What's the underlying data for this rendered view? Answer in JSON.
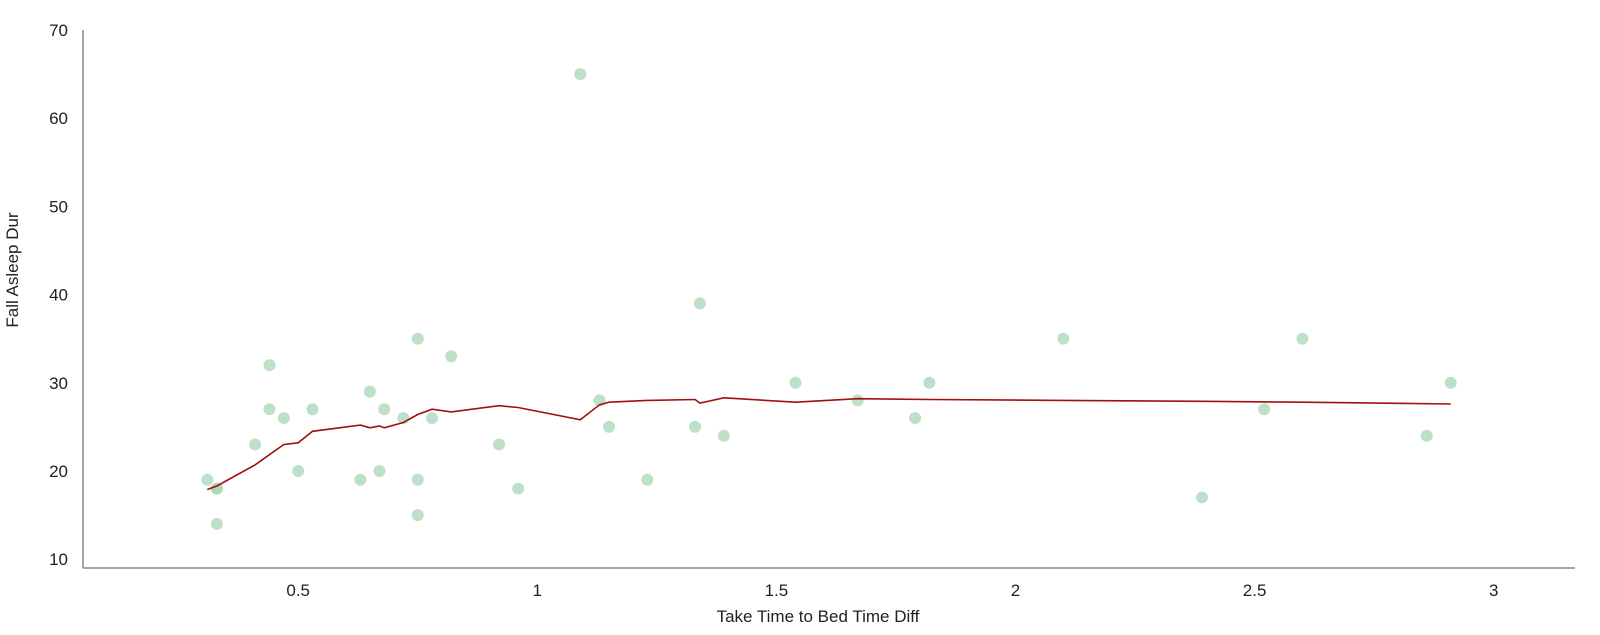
{
  "chart_data": {
    "type": "scatter",
    "xlabel": "Take Time to Bed Time Diff",
    "ylabel": "Fall Asleep Dur",
    "xlim": [
      0.05,
      3.17
    ],
    "ylim": [
      9,
      70
    ],
    "x_ticks": [
      0.5,
      1,
      1.5,
      2,
      2.5,
      3
    ],
    "x_tick_labels": [
      "0.5",
      "1",
      "1.5",
      "2",
      "2.5",
      "3"
    ],
    "y_ticks": [
      10,
      20,
      30,
      40,
      50,
      60,
      70
    ],
    "y_tick_labels": [
      "10",
      "20",
      "30",
      "40",
      "50",
      "60",
      "70"
    ],
    "grid": false,
    "colors": {
      "points": "#a8d5b5",
      "trend": "#a01010",
      "axis": "#888888"
    },
    "series": [
      {
        "kind": "scatter",
        "points": [
          {
            "x": 0.31,
            "y": 19
          },
          {
            "x": 0.33,
            "y": 18
          },
          {
            "x": 0.33,
            "y": 18
          },
          {
            "x": 0.33,
            "y": 14
          },
          {
            "x": 0.41,
            "y": 23
          },
          {
            "x": 0.44,
            "y": 32
          },
          {
            "x": 0.44,
            "y": 27
          },
          {
            "x": 0.47,
            "y": 26
          },
          {
            "x": 0.5,
            "y": 20
          },
          {
            "x": 0.53,
            "y": 27
          },
          {
            "x": 0.63,
            "y": 19
          },
          {
            "x": 0.65,
            "y": 29
          },
          {
            "x": 0.67,
            "y": 20
          },
          {
            "x": 0.68,
            "y": 27
          },
          {
            "x": 0.72,
            "y": 26
          },
          {
            "x": 0.75,
            "y": 35
          },
          {
            "x": 0.75,
            "y": 19
          },
          {
            "x": 0.75,
            "y": 15
          },
          {
            "x": 0.78,
            "y": 26
          },
          {
            "x": 0.82,
            "y": 33
          },
          {
            "x": 0.92,
            "y": 23
          },
          {
            "x": 0.96,
            "y": 18
          },
          {
            "x": 1.09,
            "y": 65
          },
          {
            "x": 1.13,
            "y": 28
          },
          {
            "x": 1.15,
            "y": 25
          },
          {
            "x": 1.23,
            "y": 19
          },
          {
            "x": 1.33,
            "y": 25
          },
          {
            "x": 1.34,
            "y": 39
          },
          {
            "x": 1.39,
            "y": 24
          },
          {
            "x": 1.54,
            "y": 30
          },
          {
            "x": 1.67,
            "y": 28
          },
          {
            "x": 1.79,
            "y": 26
          },
          {
            "x": 1.82,
            "y": 30
          },
          {
            "x": 2.1,
            "y": 35
          },
          {
            "x": 2.39,
            "y": 17
          },
          {
            "x": 2.52,
            "y": 27
          },
          {
            "x": 2.6,
            "y": 35
          },
          {
            "x": 2.86,
            "y": 24
          },
          {
            "x": 2.91,
            "y": 30
          }
        ]
      },
      {
        "kind": "trend-line",
        "points": [
          {
            "x": 0.31,
            "y": 17.9
          },
          {
            "x": 0.33,
            "y": 18.3
          },
          {
            "x": 0.41,
            "y": 20.7
          },
          {
            "x": 0.47,
            "y": 23.0
          },
          {
            "x": 0.5,
            "y": 23.2
          },
          {
            "x": 0.53,
            "y": 24.5
          },
          {
            "x": 0.63,
            "y": 25.2
          },
          {
            "x": 0.65,
            "y": 24.9
          },
          {
            "x": 0.67,
            "y": 25.1
          },
          {
            "x": 0.68,
            "y": 24.9
          },
          {
            "x": 0.72,
            "y": 25.5
          },
          {
            "x": 0.75,
            "y": 26.4
          },
          {
            "x": 0.78,
            "y": 27.0
          },
          {
            "x": 0.82,
            "y": 26.7
          },
          {
            "x": 0.92,
            "y": 27.4
          },
          {
            "x": 0.96,
            "y": 27.2
          },
          {
            "x": 1.09,
            "y": 25.8
          },
          {
            "x": 1.13,
            "y": 27.5
          },
          {
            "x": 1.15,
            "y": 27.8
          },
          {
            "x": 1.23,
            "y": 28.0
          },
          {
            "x": 1.33,
            "y": 28.1
          },
          {
            "x": 1.34,
            "y": 27.7
          },
          {
            "x": 1.39,
            "y": 28.3
          },
          {
            "x": 1.54,
            "y": 27.8
          },
          {
            "x": 1.67,
            "y": 28.2
          },
          {
            "x": 1.82,
            "y": 28.1
          },
          {
            "x": 2.1,
            "y": 28.0
          },
          {
            "x": 2.39,
            "y": 27.9
          },
          {
            "x": 2.6,
            "y": 27.8
          },
          {
            "x": 2.91,
            "y": 27.6
          }
        ]
      }
    ]
  }
}
